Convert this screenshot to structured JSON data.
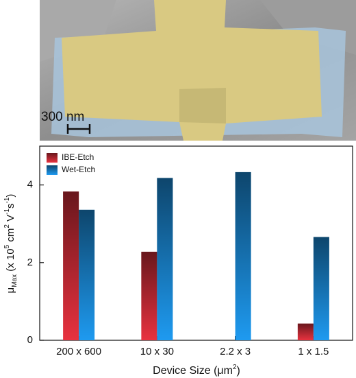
{
  "image": {
    "scale_bar": "300 nm"
  },
  "chart_data": {
    "type": "bar",
    "categories": [
      "200 x 600",
      "10 x 30",
      "2.2 x 3",
      "1 x 1.5"
    ],
    "series": [
      {
        "name": "IBE-Etch",
        "color": "#e8323f",
        "values": [
          3.83,
          2.28,
          null,
          0.43
        ]
      },
      {
        "name": "Wet-Etch",
        "color": "#1e9af0",
        "values": [
          3.36,
          4.18,
          4.33,
          2.66
        ]
      }
    ],
    "ylim": [
      0,
      5
    ],
    "yticks": [
      0,
      2,
      4
    ],
    "legend": "upper-left",
    "xlabel_parts": [
      {
        "text": "Device Size ("
      },
      {
        "text": "μm"
      },
      {
        "text": "2",
        "sup": true
      },
      {
        "text": ")"
      }
    ],
    "ylabel_parts": [
      {
        "text": "μ"
      },
      {
        "text": "Max",
        "sub": true
      },
      {
        "text": " (x 10"
      },
      {
        "text": "5",
        "sup": true
      },
      {
        "text": " cm"
      },
      {
        "text": "2",
        "sup": true
      },
      {
        "text": " V"
      },
      {
        "text": "-1",
        "sup": true
      },
      {
        "text": "s"
      },
      {
        "text": "-1",
        "sup": true
      },
      {
        "text": ")"
      }
    ]
  }
}
